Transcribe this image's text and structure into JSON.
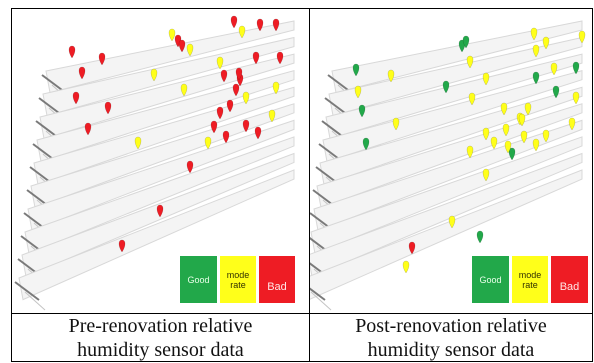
{
  "panels": [
    {
      "id": "pre",
      "caption_line1": "Pre-renovation relative",
      "caption_line2": "humidity sensor data",
      "legend": [
        {
          "key": "good",
          "label": "Good",
          "color": "#22a84a",
          "text_color": "#e9ffe9"
        },
        {
          "key": "moderate",
          "label": "mode rate",
          "color": "#ffff1a",
          "text_color": "#333300"
        },
        {
          "key": "bad",
          "label": "Bad",
          "color": "#ee1c24",
          "text_color": "#ffe6e6"
        }
      ],
      "sensor_counts": {
        "good": 0,
        "moderate": 9,
        "bad": 28
      }
    },
    {
      "id": "post",
      "caption_line1": "Post-renovation relative",
      "caption_line2": "humidity sensor data",
      "legend": [
        {
          "key": "good",
          "label": "Good",
          "color": "#22a84a",
          "text_color": "#e9ffe9"
        },
        {
          "key": "moderate",
          "label": "mode rate",
          "color": "#ffff1a",
          "text_color": "#333300"
        },
        {
          "key": "bad",
          "label": "Bad",
          "color": "#ee1c24",
          "text_color": "#ffe6e6"
        }
      ],
      "sensor_counts": {
        "good": 10,
        "moderate": 29,
        "bad": 1
      }
    }
  ]
}
